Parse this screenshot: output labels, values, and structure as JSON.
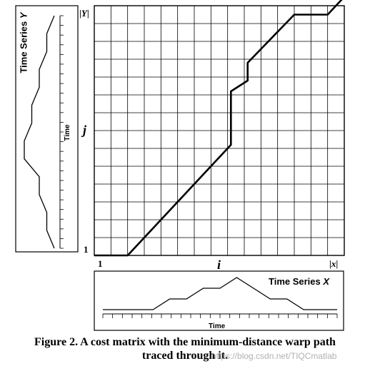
{
  "panel_y": {
    "title": "Time Series",
    "title_var": "Y",
    "axis_label": "Time",
    "points": [
      [
        0,
        0
      ],
      [
        1,
        1
      ],
      [
        2,
        1
      ],
      [
        3,
        2
      ],
      [
        4,
        2
      ],
      [
        5,
        4
      ],
      [
        6,
        4
      ],
      [
        7,
        3
      ],
      [
        8,
        3
      ],
      [
        9,
        2
      ],
      [
        10,
        2
      ],
      [
        11,
        1
      ],
      [
        12,
        1
      ],
      [
        13,
        0
      ]
    ]
  },
  "panel_x": {
    "title": "Time Series",
    "title_var": "X",
    "axis_label": "Time",
    "points": [
      [
        0,
        0
      ],
      [
        1,
        0
      ],
      [
        2,
        0
      ],
      [
        3,
        0
      ],
      [
        4,
        1
      ],
      [
        5,
        1
      ],
      [
        6,
        2
      ],
      [
        7,
        2
      ],
      [
        8,
        3
      ],
      [
        9,
        2
      ],
      [
        10,
        1
      ],
      [
        11,
        1
      ],
      [
        12,
        0
      ],
      [
        13,
        0
      ],
      [
        14,
        0
      ]
    ]
  },
  "matrix": {
    "cols": 15,
    "rows": 14,
    "label_i": "i",
    "label_j": "j",
    "label_one_x": "1",
    "label_one_y": "1",
    "label_x_end": "|x|",
    "label_x_end_var": "x",
    "label_y_end_var": "Y",
    "warp_path": [
      [
        -0.5,
        -0.5
      ],
      [
        1.5,
        -0.5
      ],
      [
        7.7,
        5.7
      ],
      [
        7.7,
        8.7
      ],
      [
        8.7,
        9.3
      ],
      [
        8.7,
        10.3
      ],
      [
        11.5,
        13.0
      ],
      [
        13.5,
        13.0
      ],
      [
        14.5,
        14.0
      ]
    ]
  },
  "caption": {
    "line1": "Figure 2. A cost matrix with the minimum-distance warp path",
    "line2": "traced through it."
  },
  "watermark": "https://blog.csdn.net/TIQCmatlab"
}
